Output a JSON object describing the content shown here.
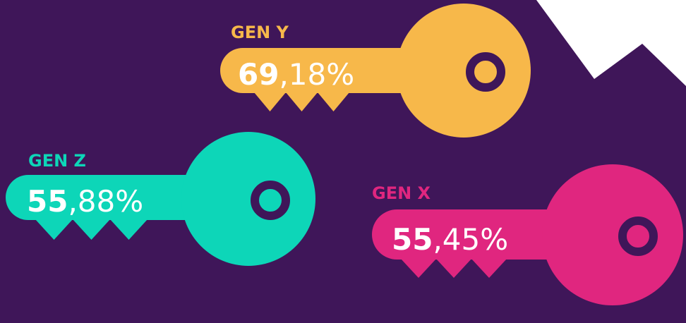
{
  "keys": [
    {
      "label": "GEN Y",
      "whole": "69",
      "rest": ",18%"
    },
    {
      "label": "GEN Z",
      "whole": "55",
      "rest": ",88%"
    },
    {
      "label": "GEN X",
      "whole": "55",
      "rest": ",45%"
    }
  ]
}
